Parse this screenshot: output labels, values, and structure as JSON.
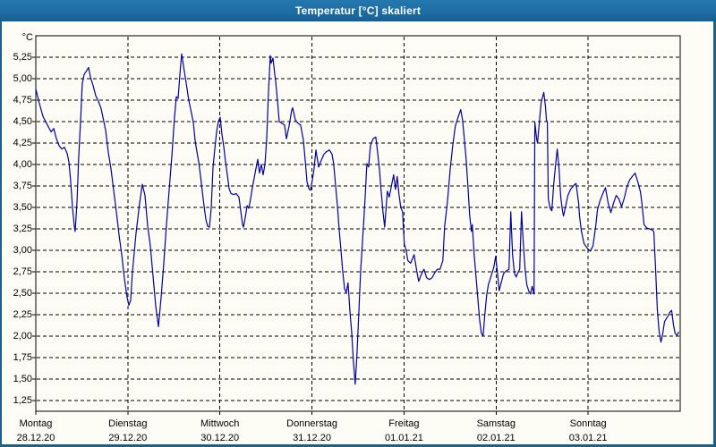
{
  "window": {
    "title": "Temperatur [°C] skaliert",
    "titlebar_color": "#1d6da3",
    "border_color": "#1d5f85",
    "background_color": "#fdfdf6"
  },
  "chart_data": {
    "type": "line",
    "title": "Temperatur [°C] skaliert",
    "y_unit": "°C",
    "xlabel": "",
    "ylabel": "",
    "ylim": [
      1.125,
      5.5
    ],
    "xlim_days": [
      0,
      7
    ],
    "grid": "dashed-black",
    "legend": "none",
    "line_color": "#0000a0",
    "y_ticks": [
      "5,25",
      "5,00",
      "4,75",
      "4,50",
      "4,25",
      "4,00",
      "3,75",
      "3,50",
      "3,25",
      "3,00",
      "2,75",
      "2,50",
      "2,25",
      "2,00",
      "1,75",
      "1,50",
      "1,25"
    ],
    "x_days": [
      {
        "label": "Montag",
        "date": "28.12.20"
      },
      {
        "label": "Dienstag",
        "date": "29.12.20"
      },
      {
        "label": "Mittwoch",
        "date": "30.12.20"
      },
      {
        "label": "Donnerstag",
        "date": "31.12.20"
      },
      {
        "label": "Freitag",
        "date": "01.01.21"
      },
      {
        "label": "Samstag",
        "date": "02.01.21"
      },
      {
        "label": "Sonntag",
        "date": "03.01.21"
      }
    ],
    "series": [
      {
        "name": "Temperatur skaliert",
        "x_unit": "days_since_first_day_midnight",
        "points": [
          [
            0.0,
            4.88
          ],
          [
            0.029,
            4.75
          ],
          [
            0.078,
            4.56
          ],
          [
            0.126,
            4.46
          ],
          [
            0.165,
            4.38
          ],
          [
            0.194,
            4.42
          ],
          [
            0.224,
            4.3
          ],
          [
            0.253,
            4.22
          ],
          [
            0.282,
            4.18
          ],
          [
            0.311,
            4.2
          ],
          [
            0.34,
            4.13
          ],
          [
            0.36,
            4.03
          ],
          [
            0.379,
            3.8
          ],
          [
            0.399,
            3.5
          ],
          [
            0.418,
            3.28
          ],
          [
            0.428,
            3.22
          ],
          [
            0.447,
            3.56
          ],
          [
            0.467,
            4.1
          ],
          [
            0.486,
            4.5
          ],
          [
            0.505,
            4.94
          ],
          [
            0.525,
            5.05
          ],
          [
            0.544,
            5.08
          ],
          [
            0.574,
            5.13
          ],
          [
            0.593,
            5.02
          ],
          [
            0.622,
            4.92
          ],
          [
            0.651,
            4.8
          ],
          [
            0.68,
            4.74
          ],
          [
            0.71,
            4.65
          ],
          [
            0.739,
            4.5
          ],
          [
            0.758,
            4.4
          ],
          [
            0.787,
            4.15
          ],
          [
            0.817,
            3.95
          ],
          [
            0.846,
            3.7
          ],
          [
            0.875,
            3.45
          ],
          [
            0.904,
            3.18
          ],
          [
            0.933,
            2.95
          ],
          [
            0.962,
            2.68
          ],
          [
            0.992,
            2.45
          ],
          [
            1.011,
            2.36
          ],
          [
            1.031,
            2.42
          ],
          [
            1.05,
            2.75
          ],
          [
            1.089,
            3.2
          ],
          [
            1.128,
            3.55
          ],
          [
            1.157,
            3.77
          ],
          [
            1.186,
            3.64
          ],
          [
            1.215,
            3.28
          ],
          [
            1.244,
            3.05
          ],
          [
            1.274,
            2.7
          ],
          [
            1.303,
            2.35
          ],
          [
            1.332,
            2.11
          ],
          [
            1.361,
            2.45
          ],
          [
            1.39,
            2.85
          ],
          [
            1.419,
            3.3
          ],
          [
            1.449,
            3.7
          ],
          [
            1.478,
            4.1
          ],
          [
            1.507,
            4.55
          ],
          [
            1.526,
            4.79
          ],
          [
            1.546,
            4.77
          ],
          [
            1.565,
            5.05
          ],
          [
            1.585,
            5.29
          ],
          [
            1.604,
            5.15
          ],
          [
            1.633,
            4.95
          ],
          [
            1.662,
            4.75
          ],
          [
            1.691,
            4.6
          ],
          [
            1.711,
            4.49
          ],
          [
            1.731,
            4.28
          ],
          [
            1.75,
            4.15
          ],
          [
            1.769,
            4.03
          ],
          [
            1.789,
            3.87
          ],
          [
            1.818,
            3.6
          ],
          [
            1.847,
            3.36
          ],
          [
            1.867,
            3.28
          ],
          [
            1.886,
            3.27
          ],
          [
            1.906,
            3.49
          ],
          [
            1.925,
            3.97
          ],
          [
            1.944,
            4.18
          ],
          [
            1.964,
            4.38
          ],
          [
            1.983,
            4.5
          ],
          [
            2.003,
            4.55
          ],
          [
            2.022,
            4.35
          ],
          [
            2.042,
            4.21
          ],
          [
            2.061,
            4.03
          ],
          [
            2.081,
            3.88
          ],
          [
            2.1,
            3.72
          ],
          [
            2.12,
            3.66
          ],
          [
            2.149,
            3.65
          ],
          [
            2.178,
            3.66
          ],
          [
            2.207,
            3.62
          ],
          [
            2.227,
            3.45
          ],
          [
            2.246,
            3.3
          ],
          [
            2.256,
            3.27
          ],
          [
            2.275,
            3.38
          ],
          [
            2.295,
            3.52
          ],
          [
            2.314,
            3.49
          ],
          [
            2.333,
            3.6
          ],
          [
            2.353,
            3.73
          ],
          [
            2.382,
            3.9
          ],
          [
            2.411,
            4.06
          ],
          [
            2.43,
            3.9
          ],
          [
            2.45,
            4.0
          ],
          [
            2.469,
            3.88
          ],
          [
            2.489,
            4.0
          ],
          [
            2.508,
            4.3
          ],
          [
            2.528,
            4.85
          ],
          [
            2.547,
            5.27
          ],
          [
            2.557,
            5.18
          ],
          [
            2.576,
            5.24
          ],
          [
            2.596,
            5.05
          ],
          [
            2.605,
            4.98
          ],
          [
            2.625,
            4.75
          ],
          [
            2.644,
            4.5
          ],
          [
            2.673,
            4.48
          ],
          [
            2.702,
            4.46
          ],
          [
            2.722,
            4.3
          ],
          [
            2.751,
            4.45
          ],
          [
            2.78,
            4.63
          ],
          [
            2.79,
            4.66
          ],
          [
            2.819,
            4.52
          ],
          [
            2.848,
            4.48
          ],
          [
            2.877,
            4.46
          ],
          [
            2.907,
            4.28
          ],
          [
            2.926,
            4.05
          ],
          [
            2.946,
            3.8
          ],
          [
            2.965,
            3.72
          ],
          [
            2.984,
            3.7
          ],
          [
            3.004,
            3.82
          ],
          [
            3.023,
            3.95
          ],
          [
            3.043,
            4.17
          ],
          [
            3.072,
            3.97
          ],
          [
            3.101,
            4.05
          ],
          [
            3.13,
            4.12
          ],
          [
            3.159,
            4.15
          ],
          [
            3.188,
            4.17
          ],
          [
            3.218,
            4.12
          ],
          [
            3.237,
            4.0
          ],
          [
            3.257,
            3.75
          ],
          [
            3.276,
            3.52
          ],
          [
            3.295,
            3.25
          ],
          [
            3.315,
            3.0
          ],
          [
            3.334,
            2.76
          ],
          [
            3.354,
            2.55
          ],
          [
            3.373,
            2.51
          ],
          [
            3.392,
            2.62
          ],
          [
            3.412,
            2.3
          ],
          [
            3.431,
            2.05
          ],
          [
            3.45,
            1.7
          ],
          [
            3.47,
            1.44
          ],
          [
            3.489,
            1.8
          ],
          [
            3.509,
            2.27
          ],
          [
            3.528,
            2.75
          ],
          [
            3.557,
            3.25
          ],
          [
            3.577,
            3.6
          ],
          [
            3.596,
            4.01
          ],
          [
            3.615,
            3.97
          ],
          [
            3.635,
            4.22
          ],
          [
            3.664,
            4.3
          ],
          [
            3.693,
            4.32
          ],
          [
            3.712,
            4.15
          ],
          [
            3.732,
            3.95
          ],
          [
            3.751,
            3.7
          ],
          [
            3.771,
            3.45
          ],
          [
            3.79,
            3.27
          ],
          [
            3.819,
            3.69
          ],
          [
            3.839,
            3.62
          ],
          [
            3.858,
            3.72
          ],
          [
            3.887,
            3.88
          ],
          [
            3.907,
            3.71
          ],
          [
            3.926,
            3.86
          ],
          [
            3.945,
            3.65
          ],
          [
            3.965,
            3.5
          ],
          [
            3.984,
            3.45
          ],
          [
            4.004,
            3.07
          ],
          [
            4.023,
            3.0
          ],
          [
            4.042,
            2.88
          ],
          [
            4.072,
            2.85
          ],
          [
            4.091,
            2.9
          ],
          [
            4.11,
            2.95
          ],
          [
            4.14,
            2.75
          ],
          [
            4.159,
            2.64
          ],
          [
            4.188,
            2.72
          ],
          [
            4.217,
            2.78
          ],
          [
            4.246,
            2.68
          ],
          [
            4.276,
            2.66
          ],
          [
            4.305,
            2.68
          ],
          [
            4.334,
            2.74
          ],
          [
            4.363,
            2.78
          ],
          [
            4.392,
            2.78
          ],
          [
            4.422,
            2.88
          ],
          [
            4.441,
            3.28
          ],
          [
            4.47,
            3.55
          ],
          [
            4.5,
            3.93
          ],
          [
            4.529,
            4.22
          ],
          [
            4.558,
            4.45
          ],
          [
            4.587,
            4.55
          ],
          [
            4.616,
            4.64
          ],
          [
            4.636,
            4.52
          ],
          [
            4.655,
            4.3
          ],
          [
            4.675,
            4.05
          ],
          [
            4.694,
            3.75
          ],
          [
            4.713,
            3.4
          ],
          [
            4.733,
            3.22
          ],
          [
            4.742,
            3.3
          ],
          [
            4.762,
            2.95
          ],
          [
            4.781,
            2.7
          ],
          [
            4.801,
            2.45
          ],
          [
            4.82,
            2.2
          ],
          [
            4.839,
            2.04
          ],
          [
            4.859,
            2.0
          ],
          [
            4.878,
            2.25
          ],
          [
            4.898,
            2.48
          ],
          [
            4.917,
            2.6
          ],
          [
            4.946,
            2.7
          ],
          [
            4.975,
            2.8
          ],
          [
            4.995,
            2.93
          ],
          [
            5.014,
            2.75
          ],
          [
            5.033,
            2.53
          ],
          [
            5.053,
            2.61
          ],
          [
            5.082,
            2.73
          ],
          [
            5.111,
            2.76
          ],
          [
            5.14,
            2.78
          ],
          [
            5.16,
            3.45
          ],
          [
            5.179,
            2.95
          ],
          [
            5.199,
            2.73
          ],
          [
            5.218,
            2.69
          ],
          [
            5.237,
            2.74
          ],
          [
            5.257,
            2.78
          ],
          [
            5.276,
            3.45
          ],
          [
            5.295,
            3.1
          ],
          [
            5.315,
            2.78
          ],
          [
            5.334,
            2.6
          ],
          [
            5.353,
            2.53
          ],
          [
            5.373,
            2.49
          ],
          [
            5.392,
            2.58
          ],
          [
            5.412,
            2.49
          ],
          [
            5.421,
            4.49
          ],
          [
            5.441,
            4.3
          ],
          [
            5.45,
            4.25
          ],
          [
            5.47,
            4.49
          ],
          [
            5.489,
            4.72
          ],
          [
            5.518,
            4.84
          ],
          [
            5.538,
            4.66
          ],
          [
            5.547,
            4.52
          ],
          [
            5.557,
            4.49
          ],
          [
            5.567,
            3.6
          ],
          [
            5.586,
            3.49
          ],
          [
            5.606,
            3.46
          ],
          [
            5.625,
            3.76
          ],
          [
            5.644,
            3.97
          ],
          [
            5.664,
            4.18
          ],
          [
            5.683,
            3.97
          ],
          [
            5.702,
            3.62
          ],
          [
            5.722,
            3.46
          ],
          [
            5.732,
            3.4
          ],
          [
            5.751,
            3.49
          ],
          [
            5.78,
            3.64
          ],
          [
            5.809,
            3.71
          ],
          [
            5.848,
            3.76
          ],
          [
            5.868,
            3.78
          ],
          [
            5.897,
            3.55
          ],
          [
            5.906,
            3.4
          ],
          [
            5.926,
            3.23
          ],
          [
            5.955,
            3.08
          ],
          [
            5.994,
            3.02
          ],
          [
            6.023,
            2.99
          ],
          [
            6.052,
            3.05
          ],
          [
            6.082,
            3.28
          ],
          [
            6.101,
            3.47
          ],
          [
            6.13,
            3.58
          ],
          [
            6.159,
            3.66
          ],
          [
            6.188,
            3.73
          ],
          [
            6.217,
            3.55
          ],
          [
            6.247,
            3.44
          ],
          [
            6.276,
            3.55
          ],
          [
            6.305,
            3.64
          ],
          [
            6.334,
            3.6
          ],
          [
            6.363,
            3.51
          ],
          [
            6.393,
            3.61
          ],
          [
            6.422,
            3.74
          ],
          [
            6.451,
            3.82
          ],
          [
            6.48,
            3.86
          ],
          [
            6.51,
            3.9
          ],
          [
            6.539,
            3.8
          ],
          [
            6.568,
            3.68
          ],
          [
            6.587,
            3.52
          ],
          [
            6.607,
            3.3
          ],
          [
            6.636,
            3.26
          ],
          [
            6.665,
            3.25
          ],
          [
            6.694,
            3.24
          ],
          [
            6.713,
            3.22
          ],
          [
            6.733,
            2.78
          ],
          [
            6.752,
            2.3
          ],
          [
            6.771,
            2.06
          ],
          [
            6.791,
            1.93
          ],
          [
            6.81,
            2.03
          ],
          [
            6.83,
            2.17
          ],
          [
            6.859,
            2.22
          ],
          [
            6.888,
            2.28
          ],
          [
            6.907,
            2.3
          ],
          [
            6.927,
            2.13
          ],
          [
            6.946,
            2.03
          ],
          [
            6.965,
            2.01
          ],
          [
            6.985,
            2.05
          ]
        ]
      }
    ]
  }
}
